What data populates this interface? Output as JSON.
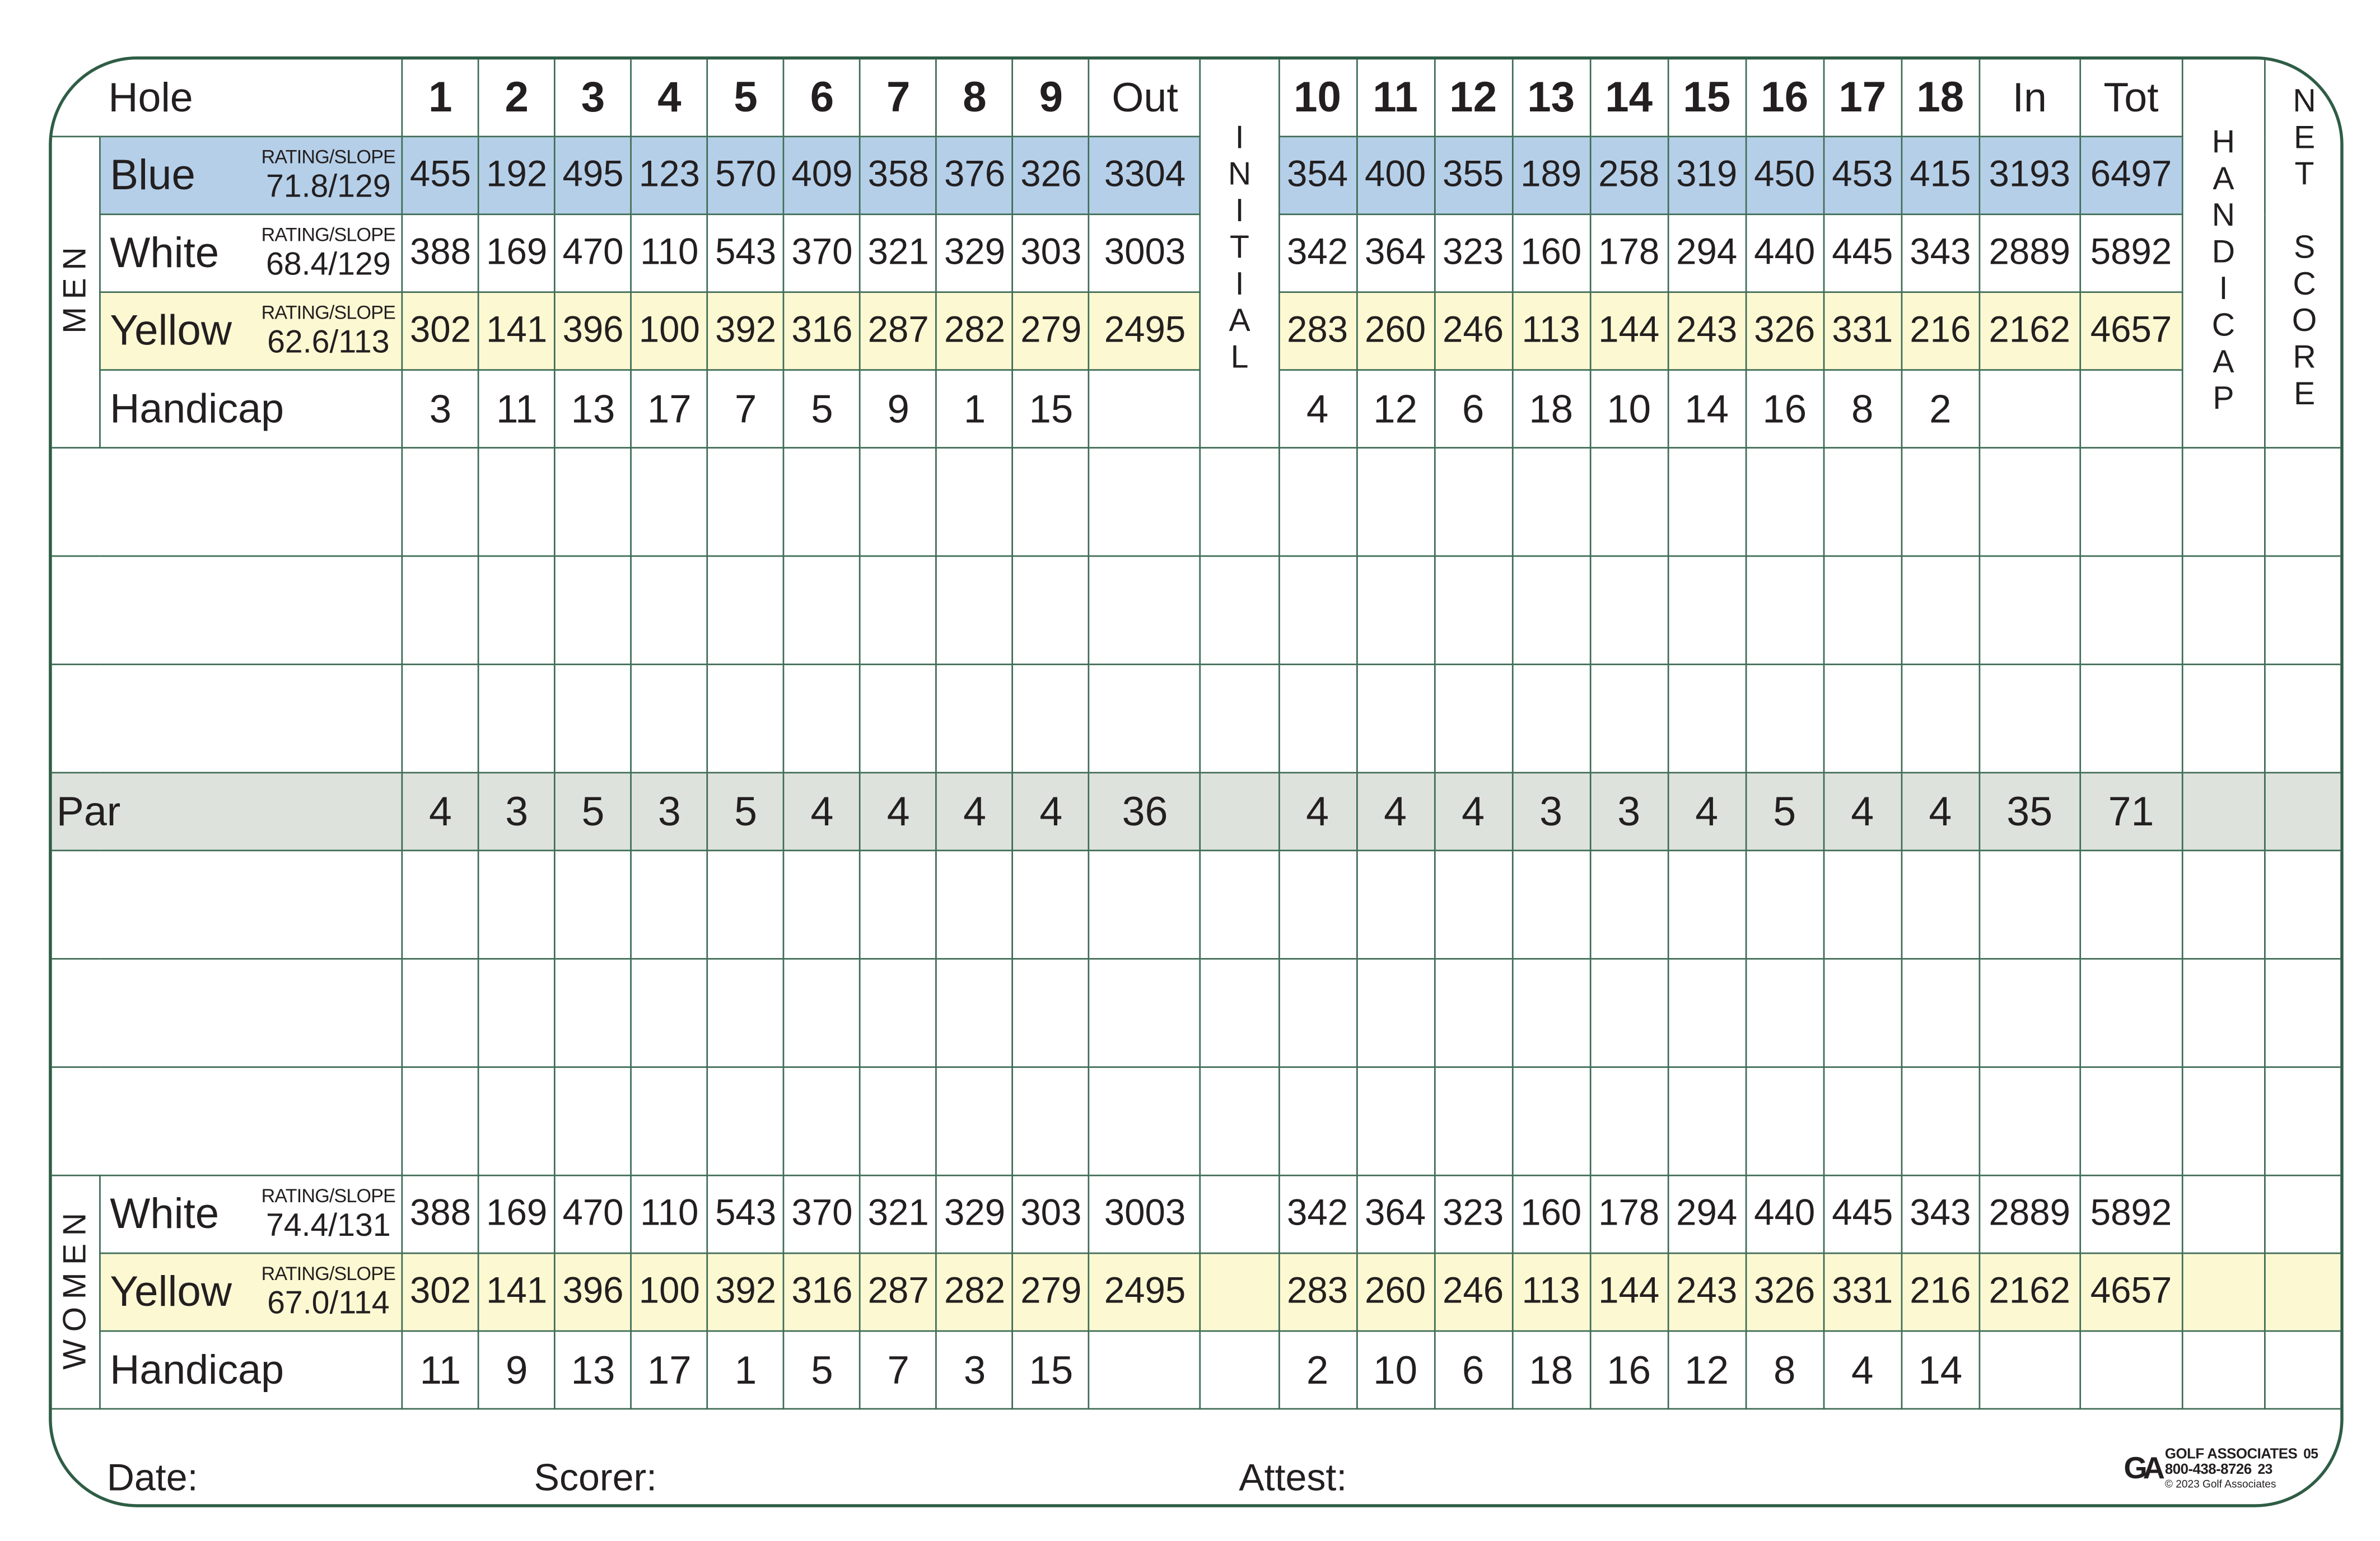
{
  "colors": {
    "blue_tee": "#b5cfe9",
    "yellow_tee": "#fcf9d2",
    "par_row": "#dde3dc",
    "grid_lines": "#3d6b55"
  },
  "header": {
    "hole_label": "Hole",
    "front_holes": [
      "1",
      "2",
      "3",
      "4",
      "5",
      "6",
      "7",
      "8",
      "9"
    ],
    "out_label": "Out",
    "back_holes": [
      "10",
      "11",
      "12",
      "13",
      "14",
      "15",
      "16",
      "17",
      "18"
    ],
    "in_label": "In",
    "total_label": "Tot",
    "initial_label": "INITIAL",
    "handicap_label": "HANDICAP",
    "net_score_label": "NET SCORE"
  },
  "men": {
    "section_label": "MEN",
    "tees": [
      {
        "name": "Blue",
        "style": "blue",
        "rating_label": "RATING/SLOPE",
        "rating_slope": "71.8/129",
        "front": [
          "455",
          "192",
          "495",
          "123",
          "570",
          "409",
          "358",
          "376",
          "326"
        ],
        "out": "3304",
        "back": [
          "354",
          "400",
          "355",
          "189",
          "258",
          "319",
          "450",
          "453",
          "415"
        ],
        "in": "3193",
        "total": "6497"
      },
      {
        "name": "White",
        "style": "white",
        "rating_label": "RATING/SLOPE",
        "rating_slope": "68.4/129",
        "front": [
          "388",
          "169",
          "470",
          "110",
          "543",
          "370",
          "321",
          "329",
          "303"
        ],
        "out": "3003",
        "back": [
          "342",
          "364",
          "323",
          "160",
          "178",
          "294",
          "440",
          "445",
          "343"
        ],
        "in": "2889",
        "total": "5892"
      },
      {
        "name": "Yellow",
        "style": "yellow",
        "rating_label": "RATING/SLOPE",
        "rating_slope": "62.6/113",
        "front": [
          "302",
          "141",
          "396",
          "100",
          "392",
          "316",
          "287",
          "282",
          "279"
        ],
        "out": "2495",
        "back": [
          "283",
          "260",
          "246",
          "113",
          "144",
          "243",
          "326",
          "331",
          "216"
        ],
        "in": "2162",
        "total": "4657"
      }
    ],
    "handicap": {
      "label": "Handicap",
      "front": [
        "3",
        "11",
        "13",
        "17",
        "7",
        "5",
        "9",
        "1",
        "15"
      ],
      "back": [
        "4",
        "12",
        "6",
        "18",
        "10",
        "14",
        "16",
        "8",
        "2"
      ]
    }
  },
  "par": {
    "label": "Par",
    "front": [
      "4",
      "3",
      "5",
      "3",
      "5",
      "4",
      "4",
      "4",
      "4"
    ],
    "out": "36",
    "back": [
      "4",
      "4",
      "4",
      "3",
      "3",
      "4",
      "5",
      "4",
      "4"
    ],
    "in": "35",
    "total": "71"
  },
  "women": {
    "section_label": "WOMEN",
    "tees": [
      {
        "name": "White",
        "style": "white",
        "rating_label": "RATING/SLOPE",
        "rating_slope": "74.4/131",
        "front": [
          "388",
          "169",
          "470",
          "110",
          "543",
          "370",
          "321",
          "329",
          "303"
        ],
        "out": "3003",
        "back": [
          "342",
          "364",
          "323",
          "160",
          "178",
          "294",
          "440",
          "445",
          "343"
        ],
        "in": "2889",
        "total": "5892"
      },
      {
        "name": "Yellow",
        "style": "yellow",
        "rating_label": "RATING/SLOPE",
        "rating_slope": "67.0/114",
        "front": [
          "302",
          "141",
          "396",
          "100",
          "392",
          "316",
          "287",
          "282",
          "279"
        ],
        "out": "2495",
        "back": [
          "283",
          "260",
          "246",
          "113",
          "144",
          "243",
          "326",
          "331",
          "216"
        ],
        "in": "2162",
        "total": "4657"
      }
    ],
    "handicap": {
      "label": "Handicap",
      "front": [
        "11",
        "9",
        "13",
        "17",
        "1",
        "5",
        "7",
        "3",
        "15"
      ],
      "back": [
        "2",
        "10",
        "6",
        "18",
        "16",
        "12",
        "8",
        "4",
        "14"
      ]
    }
  },
  "footer": {
    "date_label": "Date:",
    "scorer_label": "Scorer:",
    "attest_label": "Attest:"
  },
  "printer": {
    "logo_text": "GA",
    "name": "GOLF ASSOCIATES",
    "phone": "800-438-8726",
    "code_top": "05",
    "code_bottom": "23",
    "copyright": "© 2023 Golf Associates"
  }
}
